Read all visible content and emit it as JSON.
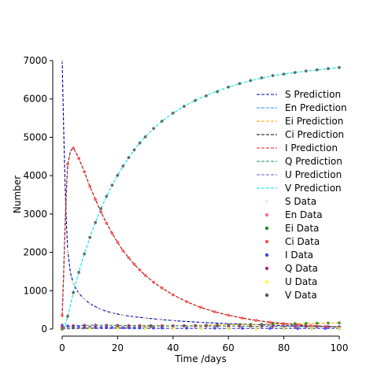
{
  "chart_data": {
    "type": "line",
    "xlabel": "Time /days",
    "ylabel": "Number",
    "xlim": [
      0,
      100
    ],
    "ylim": [
      0,
      7000
    ],
    "xticks": [
      0,
      20,
      40,
      60,
      80,
      100
    ],
    "yticks": [
      0,
      1000,
      2000,
      3000,
      4000,
      5000,
      6000,
      7000
    ],
    "grid": false,
    "legend_position": "center-right",
    "prediction_series": [
      {
        "name": "S Prediction",
        "color": "#0000aa",
        "style": "dashed",
        "x": [
          0,
          0.5,
          1,
          1.5,
          2,
          3,
          4,
          5,
          6,
          8,
          10,
          14,
          18,
          22,
          26,
          30,
          35,
          40,
          50,
          60,
          70,
          80,
          90,
          100
        ],
        "y": [
          7000,
          5300,
          3900,
          2800,
          2050,
          1450,
          1200,
          1050,
          930,
          780,
          660,
          510,
          420,
          360,
          320,
          290,
          250,
          220,
          175,
          140,
          115,
          90,
          70,
          55
        ]
      },
      {
        "name": "En Prediction",
        "color": "#1e90ff",
        "style": "dashed",
        "x": [
          0,
          5,
          10,
          20,
          40,
          60,
          80,
          100
        ],
        "y": [
          40,
          35,
          30,
          25,
          20,
          15,
          12,
          10
        ]
      },
      {
        "name": "Ei Prediction",
        "color": "#ffa500",
        "style": "dashed",
        "x": [
          0,
          10,
          20,
          40,
          60,
          80,
          100
        ],
        "y": [
          20,
          35,
          50,
          80,
          110,
          135,
          160
        ]
      },
      {
        "name": "Ci Prediction",
        "color": "#000000",
        "style": "dashed",
        "x": [
          0,
          0.5,
          1,
          1.5,
          2,
          3,
          4,
          5,
          6,
          8,
          10,
          12,
          14,
          16,
          18,
          20,
          22,
          24,
          26,
          28,
          30,
          33,
          36,
          40,
          45,
          50,
          55,
          60,
          65,
          70,
          75,
          80,
          85,
          90,
          95,
          100
        ],
        "y": [
          350,
          1400,
          2600,
          3600,
          4300,
          4650,
          4720,
          4600,
          4450,
          4100,
          3720,
          3380,
          3050,
          2760,
          2500,
          2260,
          2040,
          1860,
          1690,
          1540,
          1400,
          1220,
          1070,
          890,
          710,
          565,
          450,
          360,
          285,
          225,
          175,
          138,
          108,
          85,
          67,
          52
        ]
      },
      {
        "name": "I Prediction",
        "color": "#d62728",
        "style": "dashed",
        "x": [
          0,
          0.5,
          1,
          1.5,
          2,
          3,
          4,
          5,
          6,
          8,
          10,
          12,
          14,
          16,
          18,
          20,
          22,
          24,
          26,
          28,
          30,
          33,
          36,
          40,
          45,
          50,
          55,
          60,
          65,
          70,
          75,
          80,
          85,
          90,
          95,
          100
        ],
        "y": [
          340,
          1380,
          2580,
          3580,
          4280,
          4640,
          4720,
          4600,
          4450,
          4100,
          3720,
          3380,
          3050,
          2760,
          2500,
          2260,
          2040,
          1860,
          1690,
          1540,
          1400,
          1220,
          1070,
          890,
          710,
          565,
          450,
          360,
          285,
          225,
          180,
          145,
          115,
          92,
          74,
          60
        ]
      },
      {
        "name": "Q Prediction",
        "color": "#2e8b57",
        "style": "dashed",
        "x": [
          0,
          5,
          10,
          20,
          40,
          60,
          80,
          100
        ],
        "y": [
          60,
          90,
          100,
          95,
          85,
          75,
          65,
          60
        ]
      },
      {
        "name": "U Prediction",
        "color": "#6a5acd",
        "style": "dashed",
        "x": [
          0,
          5,
          10,
          20,
          40,
          60,
          80,
          100
        ],
        "y": [
          5,
          10,
          12,
          14,
          15,
          15,
          15,
          15
        ]
      },
      {
        "name": "V Prediction",
        "color": "#00e5ee",
        "style": "dashed",
        "x": [
          0,
          1,
          2,
          3,
          4,
          5,
          6,
          8,
          10,
          12,
          14,
          16,
          18,
          20,
          22,
          24,
          26,
          28,
          30,
          33,
          36,
          40,
          45,
          50,
          55,
          60,
          65,
          70,
          75,
          80,
          85,
          90,
          95,
          100
        ],
        "y": [
          0,
          90,
          330,
          640,
          950,
          1220,
          1480,
          1960,
          2390,
          2780,
          3140,
          3460,
          3750,
          4010,
          4250,
          4470,
          4670,
          4850,
          5010,
          5230,
          5420,
          5630,
          5850,
          6030,
          6180,
          6310,
          6420,
          6510,
          6590,
          6650,
          6700,
          6740,
          6780,
          6820
        ]
      }
    ],
    "data_series": [
      {
        "name": "S Data",
        "color": "#ffe4e1",
        "marker": "dot",
        "x": [
          0,
          2,
          4,
          6,
          8,
          10,
          14,
          18,
          22,
          26,
          30,
          35,
          40,
          50,
          60,
          70,
          80,
          90,
          100
        ],
        "y": [
          7000,
          2050,
          1200,
          930,
          780,
          660,
          510,
          420,
          360,
          320,
          290,
          250,
          220,
          175,
          140,
          115,
          90,
          70,
          55
        ]
      },
      {
        "name": "En Data",
        "color": "#ff69b4",
        "marker": "dot",
        "x": [
          0,
          10,
          20,
          30,
          40,
          50,
          60,
          70,
          80,
          90,
          100
        ],
        "y": [
          40,
          30,
          25,
          22,
          20,
          18,
          15,
          14,
          12,
          11,
          10
        ]
      },
      {
        "name": "Ei Data",
        "color": "#228b22",
        "marker": "dot",
        "x": [
          0,
          4,
          8,
          12,
          16,
          20,
          24,
          28,
          32,
          36,
          40,
          44,
          48,
          52,
          56,
          60,
          64,
          68,
          72,
          76,
          80,
          84,
          88,
          92,
          96,
          100
        ],
        "y": [
          20,
          30,
          35,
          40,
          45,
          50,
          55,
          60,
          66,
          72,
          80,
          85,
          92,
          98,
          104,
          110,
          115,
          120,
          124,
          130,
          135,
          140,
          145,
          150,
          155,
          160
        ]
      },
      {
        "name": "Ci Data",
        "color": "#ff4c4c",
        "marker": "dot",
        "x": [
          0,
          2,
          4,
          6,
          8,
          10,
          12,
          14,
          16,
          18,
          20,
          22,
          24,
          26,
          28,
          30,
          33,
          36,
          40,
          45,
          50,
          55,
          60,
          65,
          70,
          75,
          80,
          85,
          90,
          95,
          100
        ],
        "y": [
          350,
          4300,
          4720,
          4450,
          4100,
          3720,
          3380,
          3050,
          2760,
          2500,
          2260,
          2040,
          1860,
          1690,
          1540,
          1400,
          1220,
          1070,
          890,
          710,
          565,
          450,
          360,
          285,
          225,
          175,
          138,
          108,
          85,
          67,
          52
        ]
      },
      {
        "name": "I Data",
        "color": "#4040ff",
        "marker": "dot",
        "x": [
          0,
          2,
          4,
          6,
          8,
          10,
          12,
          14,
          16,
          18,
          20,
          22,
          24,
          26,
          28,
          30,
          33,
          36,
          40,
          45,
          50,
          55,
          60,
          65,
          70,
          75,
          80,
          85,
          90,
          95,
          100
        ],
        "y": [
          100,
          80,
          70,
          60,
          55,
          50,
          45,
          42,
          40,
          38,
          36,
          34,
          32,
          30,
          29,
          28,
          27,
          26,
          25,
          24,
          23,
          22,
          21,
          20,
          19,
          18,
          17,
          16,
          15,
          14,
          13
        ]
      },
      {
        "name": "Q Data",
        "color": "#a0307f",
        "marker": "dot",
        "x": [
          0,
          4,
          8,
          12,
          16,
          20,
          24,
          28,
          32,
          36,
          40,
          44,
          48,
          52,
          56,
          60,
          64,
          68,
          72,
          76,
          80,
          84,
          88,
          92,
          96,
          100
        ],
        "y": [
          60,
          88,
          98,
          100,
          98,
          95,
          93,
          91,
          89,
          87,
          85,
          83,
          81,
          79,
          77,
          75,
          73,
          71,
          69,
          67,
          65,
          64,
          63,
          62,
          61,
          60
        ]
      },
      {
        "name": "U Data",
        "color": "#ffff33",
        "marker": "dot",
        "x": [
          0,
          10,
          20,
          30,
          40,
          50,
          60,
          70,
          80,
          90,
          100
        ],
        "y": [
          5,
          12,
          14,
          15,
          15,
          15,
          15,
          15,
          15,
          15,
          15
        ]
      },
      {
        "name": "V Data",
        "color": "#4d5a4d",
        "marker": "dot",
        "x": [
          0,
          2,
          4,
          6,
          8,
          10,
          12,
          14,
          16,
          18,
          20,
          22,
          24,
          26,
          28,
          30,
          33,
          36,
          40,
          44,
          48,
          52,
          56,
          60,
          64,
          68,
          72,
          76,
          80,
          84,
          88,
          92,
          96,
          100
        ],
        "y": [
          0,
          330,
          950,
          1480,
          1960,
          2390,
          2780,
          3140,
          3460,
          3750,
          4010,
          4250,
          4470,
          4670,
          4850,
          5010,
          5230,
          5420,
          5630,
          5810,
          5960,
          6080,
          6190,
          6310,
          6400,
          6480,
          6550,
          6610,
          6650,
          6690,
          6730,
          6760,
          6790,
          6820
        ]
      }
    ]
  }
}
